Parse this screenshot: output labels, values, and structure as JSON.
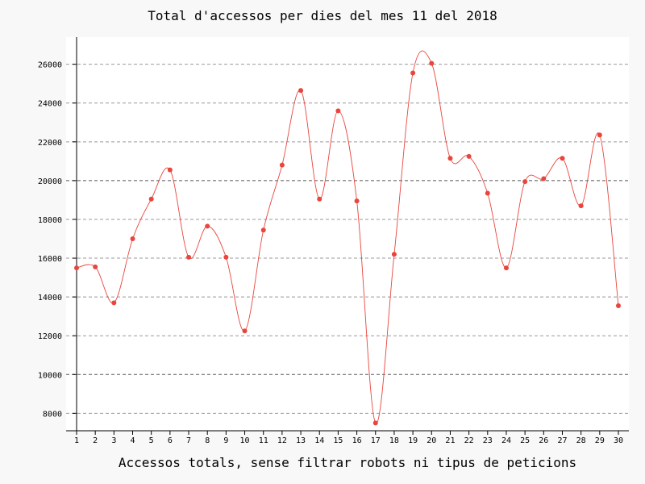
{
  "chart_data": {
    "type": "line",
    "title": "Total d'accessos per dies del mes 11 del 2018",
    "xlabel": "Accessos totals, sense filtrar robots ni tipus de peticions",
    "ylabel": "",
    "x": [
      1,
      2,
      3,
      4,
      5,
      6,
      7,
      8,
      9,
      10,
      11,
      12,
      13,
      14,
      15,
      16,
      17,
      18,
      19,
      20,
      21,
      22,
      23,
      24,
      25,
      26,
      27,
      28,
      29,
      30
    ],
    "series": [
      {
        "values": [
          15500,
          15550,
          13700,
          17000,
          19050,
          20550,
          16050,
          17650,
          16050,
          12250,
          17450,
          20800,
          24650,
          19050,
          23600,
          18950,
          7500,
          16200,
          25550,
          26050,
          21150,
          21250,
          19350,
          15500,
          19950,
          20100,
          21150,
          18700,
          22350,
          13550
        ]
      }
    ],
    "ylim": [
      7100,
      27400
    ],
    "yticks": [
      8000,
      10000,
      12000,
      14000,
      16000,
      18000,
      20000,
      22000,
      24000,
      26000
    ],
    "grid": "horizontal-dashed",
    "line_color": "#e8453c",
    "point_color": "#e8453c",
    "background_color": "#f8f8f8",
    "plot_background_color": "#ffffff"
  }
}
